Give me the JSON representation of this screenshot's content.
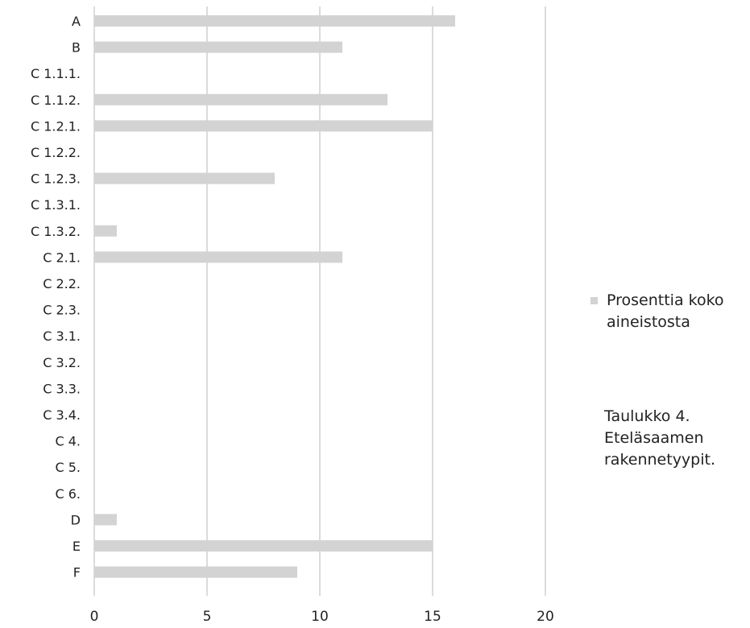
{
  "chart_data": {
    "type": "bar",
    "orientation": "horizontal",
    "categories": [
      "A",
      "B",
      "C 1.1.1.",
      "C 1.1.2.",
      "C 1.2.1.",
      "C 1.2.2.",
      "C 1.2.3.",
      "C 1.3.1.",
      "C 1.3.2.",
      "C 2.1.",
      "C 2.2.",
      "C 2.3.",
      "C 3.1.",
      "C 3.2.",
      "C 3.3.",
      "C 3.4.",
      "C 4.",
      "C 5.",
      "C 6.",
      "D",
      "E",
      "F"
    ],
    "series": [
      {
        "name": "Prosenttia koko aineistosta",
        "values": [
          16,
          11,
          0,
          13,
          15,
          0,
          8,
          0,
          1,
          11,
          0,
          0,
          0,
          0,
          0,
          0,
          0,
          0,
          0,
          1,
          15,
          9
        ],
        "color": "#d3d3d3"
      }
    ],
    "xlim": [
      0,
      20
    ],
    "xticks": [
      0,
      5,
      10,
      15,
      20
    ],
    "grid": "vertical",
    "legend_position": "right",
    "gridline_color": "#cfcfcf"
  },
  "legend": {
    "lines": [
      "Prosenttia koko",
      "aineistosta"
    ]
  },
  "caption": {
    "lines": [
      "Taulukko 4.",
      "Eteläsaamen",
      "rakennetyypit."
    ]
  }
}
